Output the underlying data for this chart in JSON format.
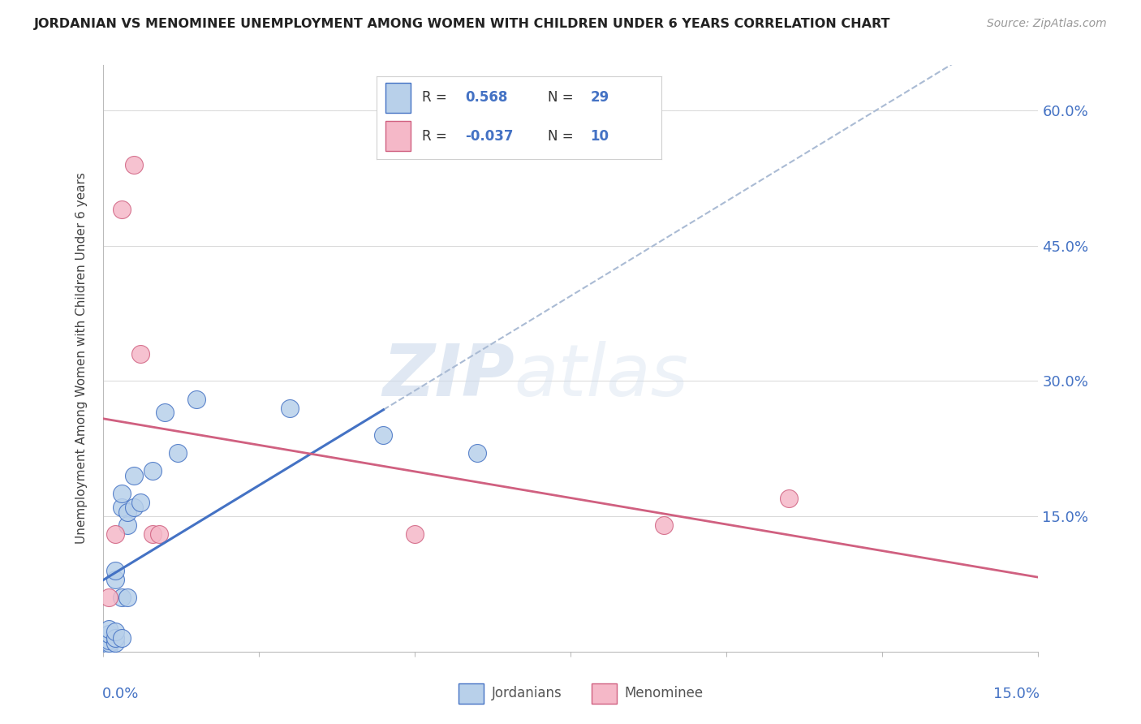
{
  "title": "JORDANIAN VS MENOMINEE UNEMPLOYMENT AMONG WOMEN WITH CHILDREN UNDER 6 YEARS CORRELATION CHART",
  "source": "Source: ZipAtlas.com",
  "ylabel": "Unemployment Among Women with Children Under 6 years",
  "ytick_labels": [
    "15.0%",
    "30.0%",
    "45.0%",
    "60.0%"
  ],
  "ytick_values": [
    0.15,
    0.3,
    0.45,
    0.6
  ],
  "xlim": [
    0.0,
    0.15
  ],
  "ylim": [
    0.0,
    0.65
  ],
  "r_jordanian": 0.568,
  "n_jordanian": 29,
  "r_menominee": -0.037,
  "n_menominee": 10,
  "jordanian_face_color": "#b8d0ea",
  "jordanian_edge_color": "#4472c4",
  "menominee_face_color": "#f5b8c8",
  "menominee_edge_color": "#d06080",
  "trendline_jordanian": "#4472c4",
  "trendline_menominee": "#d06080",
  "trendline_dashed": "#aabbd4",
  "axis_color": "#4472c4",
  "legend_label_1": "Jordanians",
  "legend_label_2": "Menominee",
  "jordanian_x": [
    0.0,
    0.001,
    0.001,
    0.001,
    0.001,
    0.001,
    0.001,
    0.002,
    0.002,
    0.002,
    0.002,
    0.002,
    0.003,
    0.003,
    0.003,
    0.003,
    0.004,
    0.004,
    0.004,
    0.005,
    0.005,
    0.006,
    0.008,
    0.01,
    0.012,
    0.015,
    0.03,
    0.045,
    0.06
  ],
  "jordanian_y": [
    0.005,
    0.005,
    0.008,
    0.01,
    0.012,
    0.02,
    0.025,
    0.01,
    0.015,
    0.022,
    0.08,
    0.09,
    0.015,
    0.06,
    0.16,
    0.175,
    0.06,
    0.14,
    0.155,
    0.16,
    0.195,
    0.165,
    0.2,
    0.265,
    0.22,
    0.28,
    0.27,
    0.24,
    0.22
  ],
  "menominee_x": [
    0.001,
    0.002,
    0.003,
    0.005,
    0.006,
    0.008,
    0.009,
    0.05,
    0.09,
    0.11
  ],
  "menominee_y": [
    0.06,
    0.13,
    0.49,
    0.54,
    0.33,
    0.13,
    0.13,
    0.13,
    0.14,
    0.17
  ]
}
